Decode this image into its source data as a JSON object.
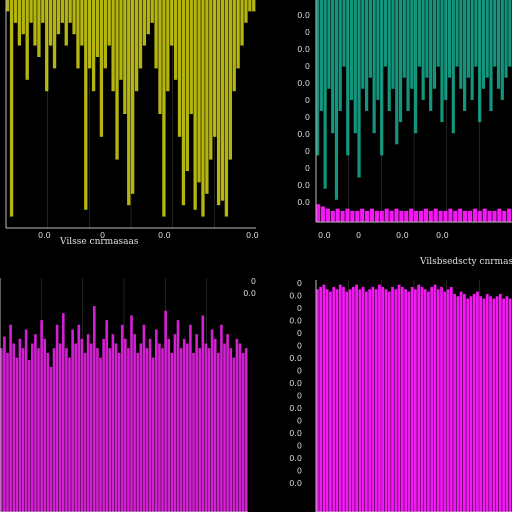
{
  "chart_data": [
    {
      "type": "area",
      "panel": "top-left",
      "color": "#f2f215",
      "grid": true,
      "xlabel": "Vilsse cnrmasaas",
      "ylabel": "",
      "x_ticks": [
        "0.0",
        "0",
        "0.0",
        "0.0"
      ],
      "y_ticks": [],
      "series": [
        {
          "bins": 64,
          "values": [
            0.05,
            0.95,
            0.1,
            0.2,
            0.15,
            0.35,
            0.1,
            0.2,
            0.25,
            0.1,
            0.4,
            0.2,
            0.3,
            0.15,
            0.1,
            0.2,
            0.1,
            0.15,
            0.3,
            0.2,
            0.92,
            0.3,
            0.4,
            0.25,
            0.6,
            0.3,
            0.2,
            0.4,
            0.7,
            0.35,
            0.5,
            0.9,
            0.85,
            0.4,
            0.3,
            0.2,
            0.15,
            0.1,
            0.3,
            0.5,
            0.95,
            0.4,
            0.2,
            0.35,
            0.6,
            0.9,
            0.75,
            0.5,
            0.92,
            0.8,
            0.95,
            0.85,
            0.7,
            0.6,
            0.9,
            0.88,
            0.95,
            0.7,
            0.4,
            0.3,
            0.2,
            0.1,
            0.05,
            0.05
          ]
        }
      ]
    },
    {
      "type": "area",
      "panel": "top-right",
      "color": "#18c7a6",
      "accent": "#ff1aff",
      "grid": true,
      "xlabel": "",
      "ylabel": "",
      "x_ticks": [
        "0.0",
        "0",
        "0.0",
        "0.0"
      ],
      "y_ticks": [
        "0.0",
        "0",
        "0.0",
        "0",
        "0.0",
        "0",
        "0",
        "0.0",
        "0",
        "0",
        "0.0",
        "0.0"
      ],
      "series": [
        {
          "bins": 52,
          "values": [
            0.7,
            0.5,
            0.85,
            0.4,
            0.6,
            0.9,
            0.5,
            0.3,
            0.7,
            0.45,
            0.6,
            0.8,
            0.4,
            0.5,
            0.35,
            0.6,
            0.45,
            0.7,
            0.3,
            0.5,
            0.4,
            0.65,
            0.55,
            0.35,
            0.5,
            0.4,
            0.6,
            0.3,
            0.45,
            0.35,
            0.5,
            0.4,
            0.3,
            0.55,
            0.45,
            0.35,
            0.6,
            0.3,
            0.4,
            0.5,
            0.35,
            0.45,
            0.3,
            0.55,
            0.4,
            0.35,
            0.5,
            0.3,
            0.4,
            0.45,
            0.35,
            0.3
          ]
        },
        {
          "bins": 40,
          "values": [
            0.08,
            0.07,
            0.06,
            0.05,
            0.06,
            0.05,
            0.06,
            0.05,
            0.05,
            0.06,
            0.05,
            0.06,
            0.05,
            0.05,
            0.06,
            0.05,
            0.06,
            0.05,
            0.05,
            0.06,
            0.05,
            0.05,
            0.06,
            0.05,
            0.06,
            0.05,
            0.05,
            0.06,
            0.05,
            0.06,
            0.05,
            0.05,
            0.06,
            0.05,
            0.06,
            0.05,
            0.05,
            0.06,
            0.05,
            0.06
          ]
        }
      ]
    },
    {
      "type": "area",
      "panel": "bottom-left",
      "color": "#dd22dd",
      "grid": true,
      "xlabel": "",
      "ylabel": "",
      "x_ticks": [],
      "y_ticks": [
        "0",
        "0.0"
      ],
      "series": [
        {
          "bins": 80,
          "values": [
            0.7,
            0.75,
            0.68,
            0.8,
            0.72,
            0.66,
            0.74,
            0.7,
            0.78,
            0.65,
            0.72,
            0.76,
            0.7,
            0.82,
            0.74,
            0.68,
            0.62,
            0.7,
            0.8,
            0.72,
            0.85,
            0.7,
            0.66,
            0.78,
            0.72,
            0.8,
            0.74,
            0.68,
            0.76,
            0.72,
            0.88,
            0.7,
            0.66,
            0.74,
            0.82,
            0.7,
            0.76,
            0.72,
            0.68,
            0.8,
            0.74,
            0.7,
            0.84,
            0.76,
            0.68,
            0.72,
            0.8,
            0.7,
            0.74,
            0.66,
            0.78,
            0.72,
            0.7,
            0.86,
            0.74,
            0.68,
            0.76,
            0.82,
            0.7,
            0.74,
            0.72,
            0.8,
            0.68,
            0.76,
            0.7,
            0.84,
            0.72,
            0.7,
            0.78,
            0.74,
            0.68,
            0.8,
            0.72,
            0.76,
            0.7,
            0.66,
            0.74,
            0.72,
            0.68,
            0.7
          ]
        }
      ]
    },
    {
      "type": "area",
      "panel": "bottom-right",
      "color": "#ff1aff",
      "grid": true,
      "xlabel": "Vilsbsedscty cnrmasaas",
      "ylabel": "",
      "x_ticks": [],
      "y_ticks": [
        "0",
        "0.0",
        "0",
        "0.0",
        "0",
        "0",
        "0.0",
        "0",
        "0.0",
        "0",
        "0.0",
        "0",
        "0.0",
        "0",
        "0.0",
        "0",
        "0.0"
      ],
      "series": [
        {
          "bins": 60,
          "values": [
            0.96,
            0.97,
            0.98,
            0.96,
            0.95,
            0.97,
            0.96,
            0.98,
            0.97,
            0.95,
            0.96,
            0.97,
            0.98,
            0.96,
            0.97,
            0.95,
            0.96,
            0.97,
            0.96,
            0.98,
            0.97,
            0.96,
            0.95,
            0.97,
            0.96,
            0.98,
            0.97,
            0.96,
            0.95,
            0.97,
            0.96,
            0.98,
            0.97,
            0.96,
            0.95,
            0.97,
            0.98,
            0.96,
            0.97,
            0.95,
            0.96,
            0.97,
            0.94,
            0.93,
            0.95,
            0.94,
            0.92,
            0.93,
            0.94,
            0.95,
            0.93,
            0.92,
            0.94,
            0.93,
            0.92,
            0.93,
            0.94,
            0.92,
            0.93,
            0.92
          ]
        }
      ]
    }
  ]
}
